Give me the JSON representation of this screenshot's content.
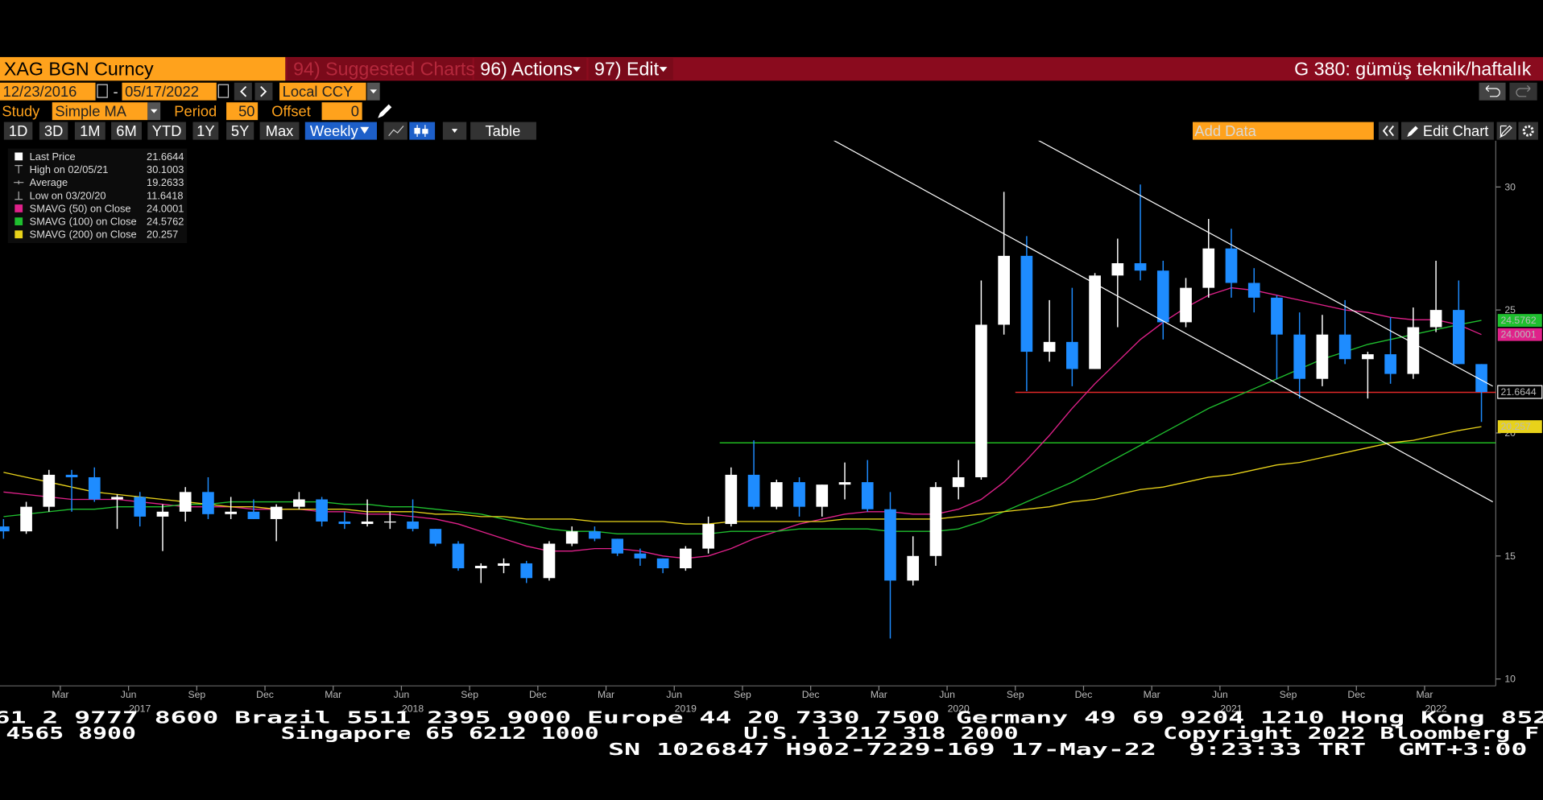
{
  "ui": {
    "security": "XAG BGN Curncy",
    "suggested": "94) Suggested Charts",
    "actions": "96) Actions",
    "edit": "97) Edit",
    "page_title": "G 380: gümüş teknik/haftalık",
    "start_date": "12/23/2016",
    "date_sep": "-",
    "end_date": "05/17/2022",
    "currency": "Local CCY",
    "study_label": "Study",
    "study": "Simple MA",
    "period_label": "Period",
    "period": 50,
    "offset_label": "Offset",
    "offset": 0,
    "ranges": [
      "1D",
      "3D",
      "1M",
      "6M",
      "YTD",
      "1Y",
      "5Y",
      "Max"
    ],
    "frequency": "Weekly",
    "table": "Table",
    "add_data": "Add Data",
    "edit_chart": "Edit Chart"
  },
  "chart_data": {
    "type": "candlestick",
    "x": [
      "2016-12",
      "2017-01",
      "2017-02",
      "2017-03",
      "2017-04",
      "2017-05",
      "2017-06",
      "2017-07",
      "2017-08",
      "2017-09",
      "2017-10",
      "2017-11",
      "2017-12",
      "2018-01",
      "2018-02",
      "2018-03",
      "2018-04",
      "2018-05",
      "2018-06",
      "2018-07",
      "2018-08",
      "2018-09",
      "2018-10",
      "2018-11",
      "2018-12",
      "2019-01",
      "2019-02",
      "2019-03",
      "2019-04",
      "2019-05",
      "2019-06",
      "2019-07",
      "2019-08",
      "2019-09",
      "2019-10",
      "2019-11",
      "2019-12",
      "2020-01",
      "2020-02",
      "2020-03",
      "2020-04",
      "2020-05",
      "2020-06",
      "2020-07",
      "2020-08",
      "2020-09",
      "2020-10",
      "2020-11",
      "2020-12",
      "2021-01",
      "2021-02",
      "2021-03",
      "2021-04",
      "2021-05",
      "2021-06",
      "2021-07",
      "2021-08",
      "2021-09",
      "2021-10",
      "2021-11",
      "2021-12",
      "2022-01",
      "2022-02",
      "2022-03",
      "2022-04",
      "2022-05"
    ],
    "open": [
      16.2,
      16.0,
      17.0,
      18.3,
      18.2,
      17.3,
      17.4,
      16.6,
      16.8,
      17.6,
      16.7,
      16.8,
      16.5,
      17.0,
      17.3,
      16.4,
      16.3,
      16.4,
      16.4,
      16.1,
      15.5,
      14.5,
      14.6,
      14.7,
      14.1,
      15.5,
      16.0,
      15.7,
      15.1,
      14.9,
      14.5,
      15.3,
      16.3,
      18.3,
      17.0,
      18.0,
      17.0,
      17.9,
      18.0,
      16.9,
      14.0,
      15.0,
      17.8,
      18.2,
      24.4,
      27.2,
      23.3,
      23.7,
      22.6,
      26.4,
      26.9,
      26.6,
      24.5,
      25.9,
      27.5,
      26.1,
      25.5,
      24.0,
      22.2,
      24.0,
      23.0,
      23.2,
      22.4,
      24.3,
      25.0,
      22.8
    ],
    "high": [
      16.5,
      17.2,
      18.5,
      18.5,
      18.6,
      17.5,
      17.6,
      17.1,
      17.8,
      18.2,
      17.4,
      17.3,
      17.1,
      17.6,
      17.4,
      16.8,
      17.3,
      16.8,
      17.3,
      16.1,
      15.6,
      14.7,
      14.9,
      14.8,
      15.6,
      16.2,
      16.2,
      15.7,
      15.3,
      14.9,
      15.4,
      16.6,
      18.6,
      19.7,
      18.1,
      18.2,
      17.9,
      18.8,
      18.9,
      17.6,
      15.8,
      18.0,
      18.9,
      26.2,
      29.8,
      28.0,
      25.4,
      25.9,
      26.5,
      27.9,
      30.1003,
      27.0,
      26.3,
      28.7,
      28.3,
      26.7,
      25.6,
      24.9,
      24.8,
      25.4,
      23.3,
      24.7,
      25.1,
      27.0,
      26.2,
      22.8
    ],
    "low": [
      15.7,
      15.9,
      16.8,
      16.8,
      17.2,
      16.1,
      16.2,
      15.2,
      16.4,
      16.5,
      16.5,
      16.5,
      15.6,
      16.9,
      16.2,
      16.1,
      16.2,
      16.1,
      16.0,
      15.4,
      14.4,
      13.9,
      14.3,
      13.9,
      14.0,
      15.4,
      15.6,
      15.0,
      14.6,
      14.3,
      14.4,
      15.1,
      16.2,
      16.9,
      16.9,
      16.6,
      16.6,
      17.3,
      16.8,
      11.6418,
      13.8,
      14.6,
      17.3,
      18.1,
      24.0,
      21.7,
      22.9,
      21.9,
      22.6,
      24.3,
      26.2,
      23.8,
      24.3,
      25.5,
      25.5,
      24.9,
      22.2,
      21.4,
      21.9,
      22.8,
      21.4,
      22.0,
      22.2,
      24.1,
      22.8,
      20.45
    ],
    "close": [
      16.0,
      17.0,
      18.3,
      18.2,
      17.3,
      17.4,
      16.6,
      16.8,
      17.6,
      16.7,
      16.8,
      16.5,
      17.0,
      17.3,
      16.4,
      16.3,
      16.4,
      16.4,
      16.1,
      15.5,
      14.5,
      14.6,
      14.7,
      14.1,
      15.5,
      16.0,
      15.7,
      15.1,
      14.9,
      14.5,
      15.3,
      16.3,
      18.3,
      17.0,
      18.0,
      17.0,
      17.9,
      18.0,
      16.9,
      14.0,
      15.0,
      17.8,
      18.2,
      24.4,
      27.2,
      23.3,
      23.7,
      22.6,
      26.4,
      26.9,
      26.6,
      24.5,
      25.9,
      27.5,
      26.1,
      25.5,
      24.0,
      22.2,
      24.0,
      23.0,
      23.2,
      22.4,
      24.3,
      25.0,
      22.8,
      21.6644
    ],
    "up_color": "#ffffff",
    "down_color": "#1e8cff",
    "series": [
      {
        "name": "SMAVG (50)  on Close",
        "color": "#e0218a",
        "values": [
          17.6,
          17.5,
          17.4,
          17.3,
          17.3,
          17.3,
          17.2,
          17.1,
          17.0,
          17.0,
          17.0,
          16.9,
          16.9,
          16.9,
          16.8,
          16.8,
          16.7,
          16.7,
          16.6,
          16.5,
          16.3,
          16.0,
          15.7,
          15.4,
          15.2,
          15.2,
          15.3,
          15.3,
          15.2,
          15.0,
          14.9,
          15.0,
          15.3,
          15.7,
          16.0,
          16.3,
          16.5,
          16.7,
          16.8,
          16.8,
          16.7,
          16.7,
          16.9,
          17.3,
          18.0,
          18.9,
          19.9,
          21.0,
          22.0,
          22.9,
          23.8,
          24.5,
          25.1,
          25.6,
          25.9,
          25.8,
          25.6,
          25.4,
          25.2,
          25.0,
          24.9,
          24.7,
          24.6,
          24.6,
          24.4,
          24.0001
        ]
      },
      {
        "name": "SMAVG (100)  on Close",
        "color": "#1fbf2f",
        "values": [
          16.6,
          16.7,
          16.8,
          16.9,
          16.9,
          17.0,
          17.0,
          17.0,
          17.1,
          17.1,
          17.2,
          17.2,
          17.2,
          17.2,
          17.2,
          17.1,
          17.1,
          17.0,
          17.0,
          16.9,
          16.8,
          16.7,
          16.5,
          16.3,
          16.1,
          16.0,
          16.0,
          15.9,
          15.9,
          15.9,
          15.9,
          15.9,
          16.0,
          16.0,
          16.0,
          16.1,
          16.1,
          16.1,
          16.1,
          16.0,
          16.0,
          16.0,
          16.1,
          16.4,
          16.8,
          17.2,
          17.6,
          18.0,
          18.5,
          19.0,
          19.5,
          20.0,
          20.5,
          21.0,
          21.4,
          21.8,
          22.2,
          22.6,
          23.0,
          23.3,
          23.6,
          23.8,
          24.0,
          24.2,
          24.4,
          24.5762
        ]
      },
      {
        "name": "SMAVG (200)  on Close",
        "color": "#e8d21a",
        "values": [
          18.4,
          18.2,
          18.0,
          17.8,
          17.6,
          17.5,
          17.4,
          17.3,
          17.2,
          17.1,
          17.0,
          17.0,
          16.9,
          16.9,
          16.9,
          16.9,
          16.8,
          16.8,
          16.8,
          16.7,
          16.7,
          16.6,
          16.6,
          16.5,
          16.5,
          16.5,
          16.4,
          16.4,
          16.4,
          16.4,
          16.3,
          16.3,
          16.4,
          16.4,
          16.4,
          16.4,
          16.4,
          16.5,
          16.5,
          16.5,
          16.5,
          16.5,
          16.6,
          16.7,
          16.8,
          16.9,
          17.0,
          17.2,
          17.3,
          17.5,
          17.7,
          17.8,
          18.0,
          18.2,
          18.3,
          18.5,
          18.7,
          18.8,
          19.0,
          19.2,
          19.4,
          19.6,
          19.7,
          19.9,
          20.1,
          20.257
        ]
      }
    ],
    "stats": [
      {
        "name": "Last Price",
        "value": 21.6644
      },
      {
        "name": "High on 02/05/21",
        "value": 30.1003
      },
      {
        "name": "Average",
        "value": 19.2633
      },
      {
        "name": "Low on 03/20/20",
        "value": 11.6418
      }
    ],
    "trendlines": [
      {
        "x": [
          "2020-01",
          "2022-06"
        ],
        "y": [
          31.9,
          17.2
        ],
        "color": "#ffffff"
      },
      {
        "x": [
          "2020-10",
          "2022-06"
        ],
        "y": [
          31.9,
          21.9
        ],
        "color": "#ffffff"
      }
    ],
    "hlines": [
      {
        "y": 21.65,
        "from": "2020-09",
        "color": "#e02828"
      },
      {
        "y": 19.6,
        "from": "2019-08",
        "color": "#22cc22"
      }
    ],
    "xlim": [
      "2016-12",
      "2022-06"
    ],
    "xticks": [
      {
        "value": "2017-03",
        "label": "Mar"
      },
      {
        "value": "2017-06",
        "label": "Jun"
      },
      {
        "value": "2017-09",
        "label": "Sep"
      },
      {
        "value": "2017-12",
        "label": "Dec"
      },
      {
        "value": "2018-03",
        "label": "Mar"
      },
      {
        "value": "2018-06",
        "label": "Jun"
      },
      {
        "value": "2018-09",
        "label": "Sep"
      },
      {
        "value": "2018-12",
        "label": "Dec"
      },
      {
        "value": "2019-03",
        "label": "Mar"
      },
      {
        "value": "2019-06",
        "label": "Jun"
      },
      {
        "value": "2019-09",
        "label": "Sep"
      },
      {
        "value": "2019-12",
        "label": "Dec"
      },
      {
        "value": "2020-03",
        "label": "Mar"
      },
      {
        "value": "2020-06",
        "label": "Jun"
      },
      {
        "value": "2020-09",
        "label": "Sep"
      },
      {
        "value": "2020-12",
        "label": "Dec"
      },
      {
        "value": "2021-03",
        "label": "Mar"
      },
      {
        "value": "2021-06",
        "label": "Jun"
      },
      {
        "value": "2021-09",
        "label": "Sep"
      },
      {
        "value": "2021-12",
        "label": "Dec"
      },
      {
        "value": "2022-03",
        "label": "Mar"
      }
    ],
    "year_ticks": [
      {
        "value": "2017-06",
        "label": "2017"
      },
      {
        "value": "2018-06",
        "label": "2018"
      },
      {
        "value": "2019-06",
        "label": "2019"
      },
      {
        "value": "2020-06",
        "label": "2020"
      },
      {
        "value": "2021-06",
        "label": "2021"
      },
      {
        "value": "2022-03",
        "label": "2022"
      }
    ],
    "ylim": [
      9.72,
      31.88
    ],
    "yticks": [
      10,
      15,
      20,
      25,
      30
    ]
  },
  "footer": [
    "61 2 9777 8600 Brazil 5511 2395 9000 Europe 44 20 7330 7500 Germany 49 69 9204 1210 Hong Kong 852",
    "4565 8900          Singapore 65 6212 1000          U.S. 1 212 318 2000          Copyright 2022 Bloomberg F",
    "SN 1026847 H902-7229-169 17-May-22  9:23:33 TRT  GMT+3:00"
  ]
}
